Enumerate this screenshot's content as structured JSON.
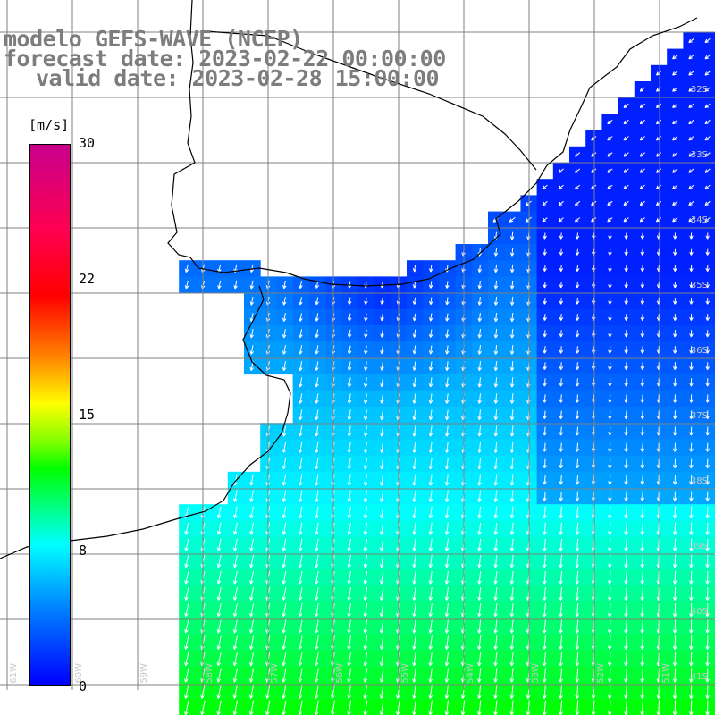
{
  "title": {
    "line1": "modelo GEFS-WAVE (NCEP)",
    "line2": "forecast date: 2023-02-22 00:00:00",
    "line3": "valid date: 2023-02-28 15:00:00"
  },
  "colorbar": {
    "unit": "[m/s]",
    "ticks": [
      "30",
      "22",
      "15",
      "8",
      "0"
    ],
    "tick_values": [
      30,
      22,
      15,
      8,
      0
    ],
    "range": [
      0,
      30
    ],
    "colors": [
      "#0000ff",
      "#0080ff",
      "#00ffff",
      "#00ff80",
      "#00ff00",
      "#80ff00",
      "#ffff00",
      "#ff8000",
      "#ff0000",
      "#c8008c"
    ]
  },
  "map": {
    "land_color": "#ffffff",
    "coast_color": "#000000",
    "grid_color": "#808080",
    "arrow_color": "#ffffff",
    "lat_labels": [
      "32S",
      "33S",
      "34S",
      "35S",
      "36S",
      "37S",
      "38S",
      "39S",
      "40S",
      "41S"
    ],
    "lon_labels": [
      "61W",
      "60W",
      "59W",
      "58W",
      "57W",
      "56W",
      "55W",
      "54W",
      "53W",
      "52W",
      "51W"
    ]
  }
}
